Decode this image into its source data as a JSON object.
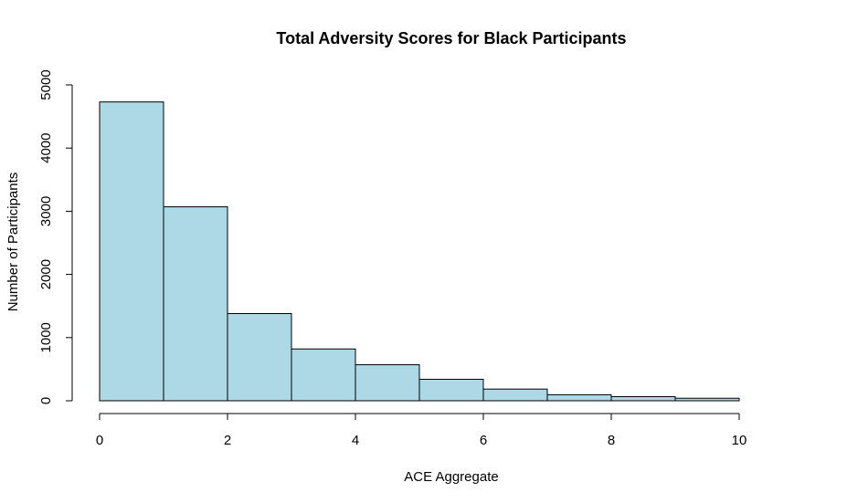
{
  "chart_data": {
    "type": "bar",
    "title": "Total Adversity Scores for Black Participants",
    "xlabel": "ACE Aggregate",
    "ylabel": "Number of Participants",
    "bins": [
      {
        "x0": 0,
        "x1": 1,
        "count": 4730
      },
      {
        "x0": 1,
        "x1": 2,
        "count": 3070
      },
      {
        "x0": 2,
        "x1": 3,
        "count": 1380
      },
      {
        "x0": 3,
        "x1": 4,
        "count": 820
      },
      {
        "x0": 4,
        "x1": 5,
        "count": 570
      },
      {
        "x0": 5,
        "x1": 6,
        "count": 340
      },
      {
        "x0": 6,
        "x1": 7,
        "count": 185
      },
      {
        "x0": 7,
        "x1": 8,
        "count": 95
      },
      {
        "x0": 8,
        "x1": 9,
        "count": 65
      },
      {
        "x0": 9,
        "x1": 10,
        "count": 40
      },
      {
        "x0": 10,
        "x1": 11,
        "count": 0
      }
    ],
    "xlim": [
      0,
      11
    ],
    "ylim": [
      0,
      5000
    ],
    "xticks": [
      0,
      2,
      4,
      6,
      8,
      10
    ],
    "yticks": [
      0,
      1000,
      2000,
      3000,
      4000,
      5000
    ],
    "bar_color": "#add8e6",
    "grid": false
  }
}
